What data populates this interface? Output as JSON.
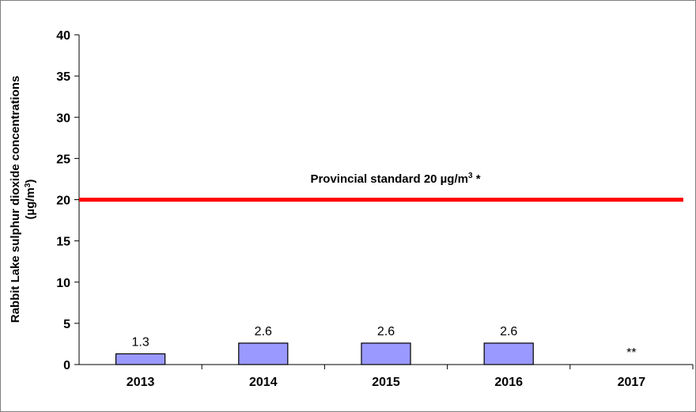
{
  "chart_data": {
    "type": "bar",
    "categories": [
      "2013",
      "2014",
      "2015",
      "2016",
      "2017"
    ],
    "values": [
      1.3,
      2.6,
      2.6,
      2.6,
      null
    ],
    "value_labels": [
      "1.3",
      "2.6",
      "2.6",
      "2.6",
      "**"
    ],
    "ylabel_line1": "Rabbit Lake sulphur dioxide concentrations",
    "ylabel_line2": "(µg/m",
    "ylabel_sup": "3",
    "ylabel_close": ")",
    "ylim": [
      0,
      40
    ],
    "yticks": [
      0,
      5,
      10,
      15,
      20,
      25,
      30,
      35,
      40
    ],
    "grid": false,
    "reference_line": {
      "value": 20,
      "label": "Provincial standard 20 µg/m",
      "label_sup": "3",
      "label_suffix": " *",
      "color": "#ff0000"
    },
    "bar_color": "#9999ff",
    "bar_edge_color": "#000000"
  }
}
